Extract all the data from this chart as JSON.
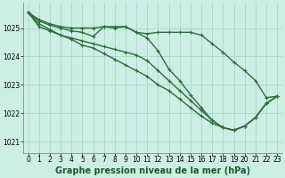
{
  "title": "Graphe pression niveau de la mer (hPa)",
  "background_color": "#cceee4",
  "grid_color": "#aad8cc",
  "line_color": "#2d6e3a",
  "xlim": [
    -0.5,
    23.5
  ],
  "ylim": [
    1020.6,
    1025.9
  ],
  "yticks": [
    1021,
    1022,
    1023,
    1024,
    1025
  ],
  "xticks": [
    0,
    1,
    2,
    3,
    4,
    5,
    6,
    7,
    8,
    9,
    10,
    11,
    12,
    13,
    14,
    15,
    16,
    17,
    18,
    19,
    20,
    21,
    22,
    23
  ],
  "series": [
    [
      1025.55,
      1025.3,
      1025.15,
      1025.05,
      1025.0,
      1025.0,
      1025.0,
      1025.05,
      1025.05,
      1025.05,
      1024.85,
      1024.8,
      1024.85,
      1024.85,
      1024.85,
      1024.85,
      1024.75,
      1024.45,
      1024.15,
      1023.8,
      1023.5,
      1023.15,
      1022.55,
      1022.6
    ],
    [
      1025.55,
      1025.25,
      1025.1,
      1025.0,
      1024.9,
      1024.85,
      1024.7,
      1025.05,
      1025.0,
      1025.05,
      1024.85,
      1024.65,
      1024.2,
      1023.55,
      1023.15,
      1022.65,
      1022.2,
      1021.75,
      1021.5,
      1021.4,
      1021.55,
      1021.85,
      1022.35,
      1022.6
    ],
    [
      1025.55,
      1025.15,
      1024.95,
      1024.75,
      1024.65,
      1024.55,
      1024.45,
      1024.35,
      1024.25,
      1024.15,
      1024.05,
      1023.85,
      1023.5,
      1023.15,
      1022.8,
      1022.45,
      1022.1,
      1021.75,
      1021.5,
      1021.4,
      1021.55,
      1021.85,
      1022.35,
      1022.6
    ],
    [
      1025.55,
      1025.05,
      1024.9,
      1024.75,
      1024.6,
      1024.4,
      1024.3,
      1024.1,
      1023.9,
      1023.7,
      1023.5,
      1023.3,
      1023.0,
      1022.8,
      1022.5,
      1022.2,
      1021.9,
      1021.65,
      1021.5,
      1021.4,
      1021.55,
      1021.85,
      1022.35,
      1022.6
    ]
  ],
  "marker_size": 3.0,
  "line_width": 1.0,
  "title_fontsize": 7.0,
  "tick_fontsize": 5.5,
  "ylabel_fontsize": 6.0
}
